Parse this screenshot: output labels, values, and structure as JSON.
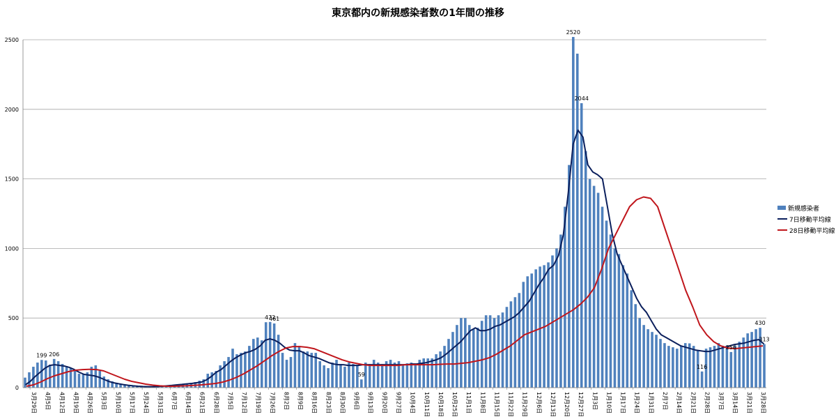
{
  "chart_data": {
    "type": "bar",
    "title": "東京都内の新規感染者数の1年間の推移",
    "ylim": [
      0,
      2500
    ],
    "y_ticks": [
      0,
      500,
      1000,
      1500,
      2000,
      2500
    ],
    "grid": true,
    "legend_position": "right",
    "x_tick_labels": [
      "3月29日",
      "4月5日",
      "4月12日",
      "4月19日",
      "4月26日",
      "5月3日",
      "5月10日",
      "5月17日",
      "5月24日",
      "5月31日",
      "6月7日",
      "6月14日",
      "6月21日",
      "6月28日",
      "7月5日",
      "7月12日",
      "7月19日",
      "7月26日",
      "8月2日",
      "8月9日",
      "8月16日",
      "8月23日",
      "8月30日",
      "9月6日",
      "9月13日",
      "9月20日",
      "9月27日",
      "10月4日",
      "10月11日",
      "10月18日",
      "10月25日",
      "11月1日",
      "11月8日",
      "11月15日",
      "11月22日",
      "11月29日",
      "12月6日",
      "12月13日",
      "12月20日",
      "12月27日",
      "1月3日",
      "1月10日",
      "1月17日",
      "1月24日",
      "1月31日",
      "2月7日",
      "2月14日",
      "2月21日",
      "2月28日",
      "3月7日",
      "3月14日",
      "3月21日",
      "3月28日"
    ],
    "series": [
      {
        "name": "新規感染者",
        "type": "bar",
        "color": "#4f81bd",
        "values": [
          72,
          110,
          150,
          180,
          199,
          195,
          165,
          206,
          190,
          170,
          155,
          140,
          120,
          100,
          95,
          110,
          150,
          160,
          120,
          80,
          60,
          45,
          35,
          25,
          20,
          15,
          10,
          10,
          8,
          5,
          5,
          8,
          10,
          15,
          15,
          20,
          18,
          20,
          25,
          30,
          35,
          40,
          50,
          60,
          100,
          110,
          120,
          160,
          190,
          220,
          280,
          240,
          250,
          260,
          300,
          350,
          360,
          340,
          470,
          472,
          461,
          380,
          250,
          200,
          220,
          320,
          300,
          260,
          260,
          250,
          250,
          190,
          160,
          140,
          180,
          200,
          170,
          150,
          180,
          170,
          160,
          59,
          180,
          170,
          200,
          180,
          170,
          190,
          200,
          180,
          190,
          160,
          175,
          180,
          160,
          200,
          210,
          210,
          210,
          240,
          260,
          300,
          350,
          400,
          450,
          500,
          500,
          450,
          420,
          430,
          480,
          520,
          520,
          500,
          520,
          540,
          580,
          620,
          650,
          680,
          760,
          800,
          820,
          850,
          870,
          880,
          900,
          950,
          1000,
          1100,
          1300,
          1600,
          2520,
          2400,
          2044,
          1700,
          1500,
          1450,
          1400,
          1300,
          1200,
          1100,
          1000,
          960,
          880,
          820,
          700,
          600,
          500,
          450,
          420,
          400,
          380,
          350,
          320,
          300,
          290,
          280,
          300,
          320,
          318,
          300,
          270,
          116,
          280,
          290,
          300,
          320,
          300,
          300,
          256,
          300,
          330,
          360,
          390,
          400,
          420,
          430,
          313
        ]
      },
      {
        "name": "7日移動平均線",
        "type": "line",
        "color": "#0b1f5c",
        "values": [
          20,
          45,
          80,
          110,
          140,
          160,
          165,
          160,
          155,
          145,
          130,
          110,
          95,
          90,
          85,
          75,
          60,
          45,
          35,
          28,
          22,
          17,
          13,
          10,
          8,
          7,
          7,
          8,
          10,
          13,
          16,
          20,
          23,
          27,
          30,
          35,
          40,
          55,
          80,
          110,
          130,
          160,
          190,
          215,
          235,
          250,
          260,
          275,
          300,
          340,
          350,
          340,
          320,
          290,
          270,
          265,
          265,
          250,
          230,
          220,
          210,
          195,
          180,
          170,
          165,
          165,
          160,
          160,
          160,
          165,
          165,
          165,
          165,
          165,
          165,
          165,
          165,
          165,
          165,
          170,
          170,
          175,
          180,
          190,
          200,
          215,
          240,
          270,
          300,
          330,
          370,
          410,
          430,
          410,
          410,
          420,
          440,
          450,
          470,
          490,
          510,
          540,
          580,
          620,
          680,
          740,
          790,
          850,
          880,
          950,
          1100,
          1400,
          1750,
          1850,
          1800,
          1600,
          1550,
          1530,
          1500,
          1300,
          1100,
          960,
          880,
          800,
          720,
          640,
          580,
          540,
          480,
          420,
          380,
          360,
          340,
          320,
          300,
          290,
          280,
          270,
          265,
          260,
          260,
          270,
          280,
          290,
          300,
          310,
          315,
          320,
          330,
          340,
          345,
          313
        ]
      },
      {
        "name": "28日移動平均線",
        "type": "line",
        "color": "#c0161c",
        "values": [
          10,
          20,
          40,
          65,
          85,
          100,
          115,
          125,
          130,
          132,
          130,
          120,
          100,
          80,
          60,
          45,
          35,
          25,
          18,
          13,
          10,
          10,
          12,
          14,
          17,
          20,
          25,
          30,
          40,
          55,
          75,
          100,
          130,
          160,
          195,
          230,
          260,
          285,
          295,
          295,
          290,
          280,
          260,
          240,
          220,
          200,
          185,
          175,
          165,
          160,
          160,
          160,
          160,
          160,
          165,
          165,
          165,
          165,
          165,
          168,
          170,
          170,
          175,
          180,
          190,
          200,
          215,
          240,
          270,
          300,
          340,
          380,
          400,
          420,
          440,
          470,
          500,
          530,
          560,
          600,
          650,
          720,
          850,
          1000,
          1100,
          1200,
          1300,
          1350,
          1370,
          1360,
          1300,
          1150,
          1000,
          850,
          700,
          580,
          450,
          380,
          330,
          300,
          285,
          280,
          285,
          290,
          295,
          300
        ]
      }
    ],
    "data_labels": [
      {
        "text": "199"
      },
      {
        "text": "206"
      },
      {
        "text": "472"
      },
      {
        "text": "461"
      },
      {
        "text": "59"
      },
      {
        "text": "2520"
      },
      {
        "text": "2044"
      },
      {
        "text": "116"
      },
      {
        "text": "256"
      },
      {
        "text": "430"
      },
      {
        "text": "313"
      }
    ]
  }
}
